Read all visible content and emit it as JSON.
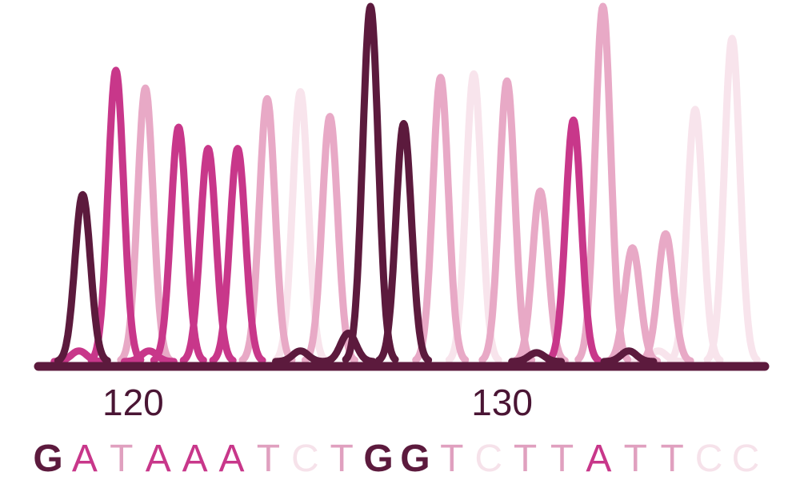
{
  "chart_data": {
    "type": "line",
    "title": "",
    "xlabel": "",
    "ylabel": "",
    "grid": false,
    "x_ticks": [
      {
        "label": "120",
        "pos": 120
      },
      {
        "label": "130",
        "pos": 130
      }
    ],
    "channels": {
      "G": {
        "color": "#5c1a3d"
      },
      "A": {
        "color": "#c8378a"
      },
      "T": {
        "color": "#e8a9c6"
      },
      "C": {
        "color": "#f8e4ec"
      }
    },
    "sequence": [
      {
        "base": "G",
        "pos": 118.3,
        "color": "#5c1a3d",
        "bold": true
      },
      {
        "base": "A",
        "pos": 119.3,
        "color": "#c8378a",
        "bold": false
      },
      {
        "base": "T",
        "pos": 120.1,
        "color": "#e0a0bf",
        "bold": false
      },
      {
        "base": "A",
        "pos": 121.0,
        "color": "#c8378a",
        "bold": false
      },
      {
        "base": "A",
        "pos": 121.8,
        "color": "#c8378a",
        "bold": false
      },
      {
        "base": "A",
        "pos": 122.7,
        "color": "#c8378a",
        "bold": false
      },
      {
        "base": "T",
        "pos": 123.5,
        "color": "#e0a0bf",
        "bold": false
      },
      {
        "base": "C",
        "pos": 124.4,
        "color": "#f6e2ea",
        "bold": false
      },
      {
        "base": "T",
        "pos": 125.2,
        "color": "#e0a0bf",
        "bold": false
      },
      {
        "base": "G",
        "pos": 126.1,
        "color": "#5c1a3d",
        "bold": true
      },
      {
        "base": "G",
        "pos": 126.9,
        "color": "#5c1a3d",
        "bold": true
      },
      {
        "base": "T",
        "pos": 127.7,
        "color": "#e0a0bf",
        "bold": false
      },
      {
        "base": "C",
        "pos": 128.6,
        "color": "#f6e2ea",
        "bold": false
      },
      {
        "base": "T",
        "pos": 129.5,
        "color": "#e0a0bf",
        "bold": false
      },
      {
        "base": "T",
        "pos": 130.3,
        "color": "#e0a0bf",
        "bold": false
      },
      {
        "base": "A",
        "pos": 131.2,
        "color": "#c8378a",
        "bold": false
      },
      {
        "base": "T",
        "pos": 132.0,
        "color": "#e0a0bf",
        "bold": false
      },
      {
        "base": "T",
        "pos": 132.8,
        "color": "#e0a0bf",
        "bold": false
      },
      {
        "base": "C",
        "pos": 133.7,
        "color": "#f6e2ea",
        "bold": false
      },
      {
        "base": "C",
        "pos": 134.5,
        "color": "#f6e2ea",
        "bold": false
      }
    ],
    "peaks": [
      {
        "channel": "G",
        "pos": 118.2,
        "height": 0.47
      },
      {
        "channel": "A",
        "pos": 119.1,
        "height": 0.82
      },
      {
        "channel": "T",
        "pos": 119.9,
        "height": 0.77
      },
      {
        "channel": "A",
        "pos": 120.8,
        "height": 0.66
      },
      {
        "channel": "A",
        "pos": 121.6,
        "height": 0.6
      },
      {
        "channel": "A",
        "pos": 122.4,
        "height": 0.6
      },
      {
        "channel": "T",
        "pos": 123.2,
        "height": 0.74
      },
      {
        "channel": "C",
        "pos": 124.1,
        "height": 0.76
      },
      {
        "channel": "T",
        "pos": 124.9,
        "height": 0.69
      },
      {
        "channel": "G",
        "pos": 125.4,
        "height": 0.08
      },
      {
        "channel": "G",
        "pos": 126.0,
        "height": 1.0
      },
      {
        "channel": "G",
        "pos": 126.9,
        "height": 0.67
      },
      {
        "channel": "T",
        "pos": 127.9,
        "height": 0.8
      },
      {
        "channel": "C",
        "pos": 128.8,
        "height": 0.81
      },
      {
        "channel": "T",
        "pos": 129.7,
        "height": 0.79
      },
      {
        "channel": "T",
        "pos": 130.6,
        "height": 0.48
      },
      {
        "channel": "A",
        "pos": 131.5,
        "height": 0.68
      },
      {
        "channel": "T",
        "pos": 132.3,
        "height": 1.0
      },
      {
        "channel": "T",
        "pos": 133.1,
        "height": 0.32
      },
      {
        "channel": "T",
        "pos": 134.0,
        "height": 0.36
      },
      {
        "channel": "C",
        "pos": 134.8,
        "height": 0.71
      },
      {
        "channel": "C",
        "pos": 135.8,
        "height": 0.91
      },
      {
        "channel": "A",
        "pos": 118.1,
        "height": 0.03
      },
      {
        "channel": "A",
        "pos": 120.0,
        "height": 0.03
      },
      {
        "channel": "G",
        "pos": 124.1,
        "height": 0.03
      },
      {
        "channel": "G",
        "pos": 130.5,
        "height": 0.025
      },
      {
        "channel": "G",
        "pos": 133.0,
        "height": 0.03
      },
      {
        "channel": "C",
        "pos": 133.8,
        "height": 0.03
      }
    ]
  }
}
